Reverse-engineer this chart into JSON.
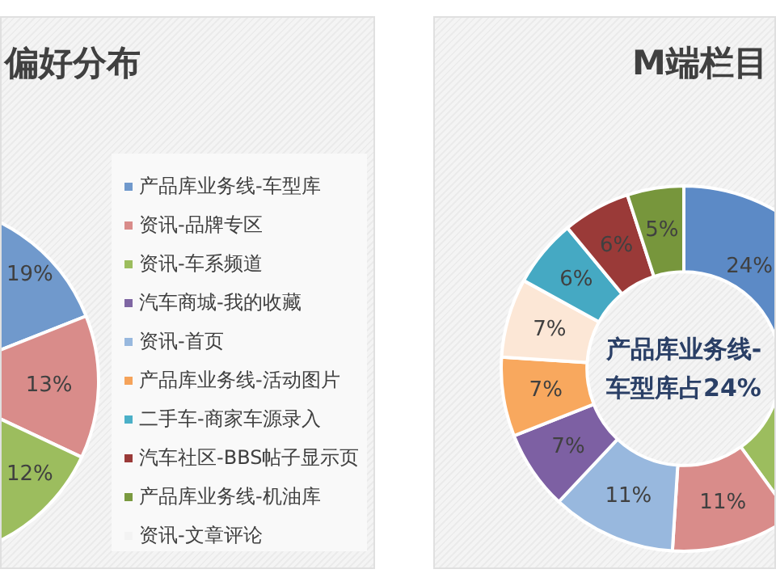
{
  "chart_data": [
    {
      "type": "donut",
      "title": "偏好分布",
      "legend": "right",
      "categories": [
        "产品库业务线-车型库",
        "资讯-品牌专区",
        "资讯-车系频道",
        "汽车商城-我的收藏",
        "资讯-首页",
        "产品库业务线-活动图片",
        "二手车-商家车源录入",
        "汽车社区-BBS帖子显示页",
        "产品库业务线-机油库",
        "资讯-文章评论"
      ],
      "values": [
        19,
        13,
        12,
        null,
        null,
        null,
        null,
        null,
        null,
        null
      ],
      "colors": [
        "#7099cc",
        "#d98c8a",
        "#9cbd5e",
        "#7f66a3",
        "#98b8de",
        "#f5a35a",
        "#4bb0c8",
        "#9a3a38",
        "#7a9a40",
        "#f3f3f3"
      ],
      "value_labels": [
        "19%",
        "13%",
        "12%",
        null,
        null,
        null,
        null,
        null,
        null,
        null
      ]
    },
    {
      "type": "donut",
      "title": "M端栏目",
      "categories": [
        null,
        null,
        null,
        null,
        null,
        null,
        null,
        null,
        null,
        null
      ],
      "values": [
        24,
        16,
        11,
        11,
        7,
        7,
        7,
        6,
        6,
        5
      ],
      "colors": [
        "#5c8ac6",
        "#9cbd5e",
        "#d98c8a",
        "#98b8de",
        "#7d60a3",
        "#f8a85e",
        "#fce7d6",
        "#45a9c3",
        "#9a3a38",
        "#77963c"
      ],
      "value_labels": [
        "24%",
        null,
        "11%",
        "11%",
        "7%",
        "7%",
        "7%",
        "6%",
        "6%",
        "5%"
      ],
      "annotations": [
        "产品库业务线-车型库占24%"
      ]
    }
  ]
}
